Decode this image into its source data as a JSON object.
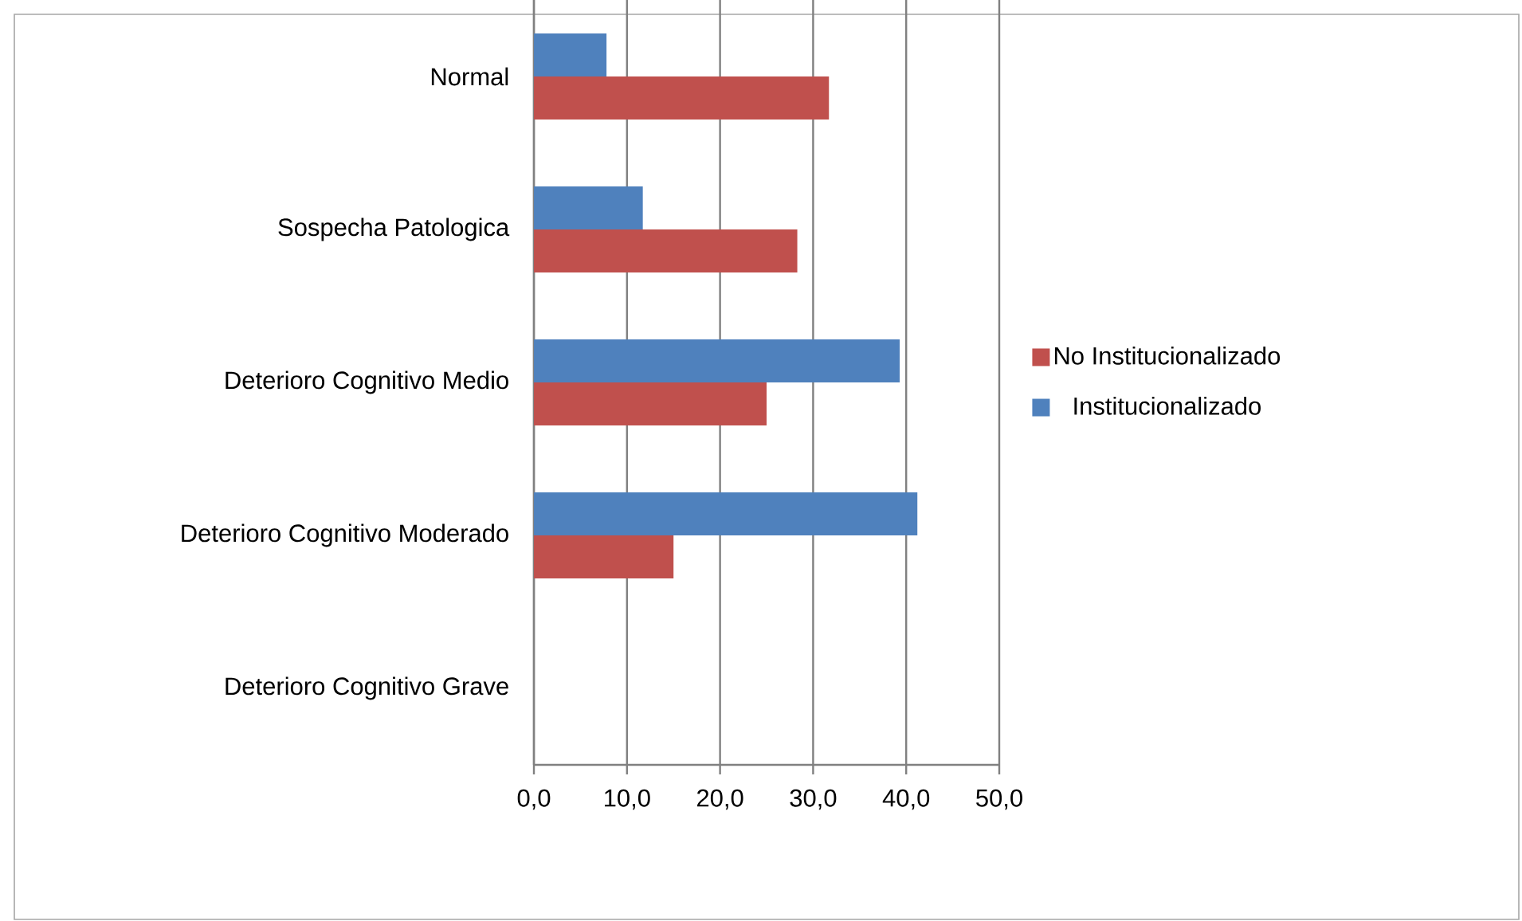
{
  "chart_data": {
    "type": "bar",
    "orientation": "horizontal",
    "categories": [
      "Normal",
      "Sospecha Patologica",
      "Deterioro Cognitivo Medio",
      "Deterioro Cognitivo Moderado",
      "Deterioro Cognitivo Grave"
    ],
    "series": [
      {
        "name": "No Institucionalizado",
        "color": "#c0504d",
        "values": [
          31.7,
          28.3,
          25.0,
          15.0,
          0
        ]
      },
      {
        "name": "Institucionalizado",
        "color": "#4f81bd",
        "values": [
          7.8,
          11.7,
          39.3,
          41.2,
          0
        ]
      }
    ],
    "xlim": [
      0,
      50
    ],
    "xticks": [
      {
        "value": 0,
        "label": "0,0"
      },
      {
        "value": 10,
        "label": "10,0"
      },
      {
        "value": 20,
        "label": "20,0"
      },
      {
        "value": 30,
        "label": "30,0"
      },
      {
        "value": 40,
        "label": "40,0"
      },
      {
        "value": 50,
        "label": "50,0"
      }
    ],
    "grid": "x",
    "legend": "right"
  }
}
